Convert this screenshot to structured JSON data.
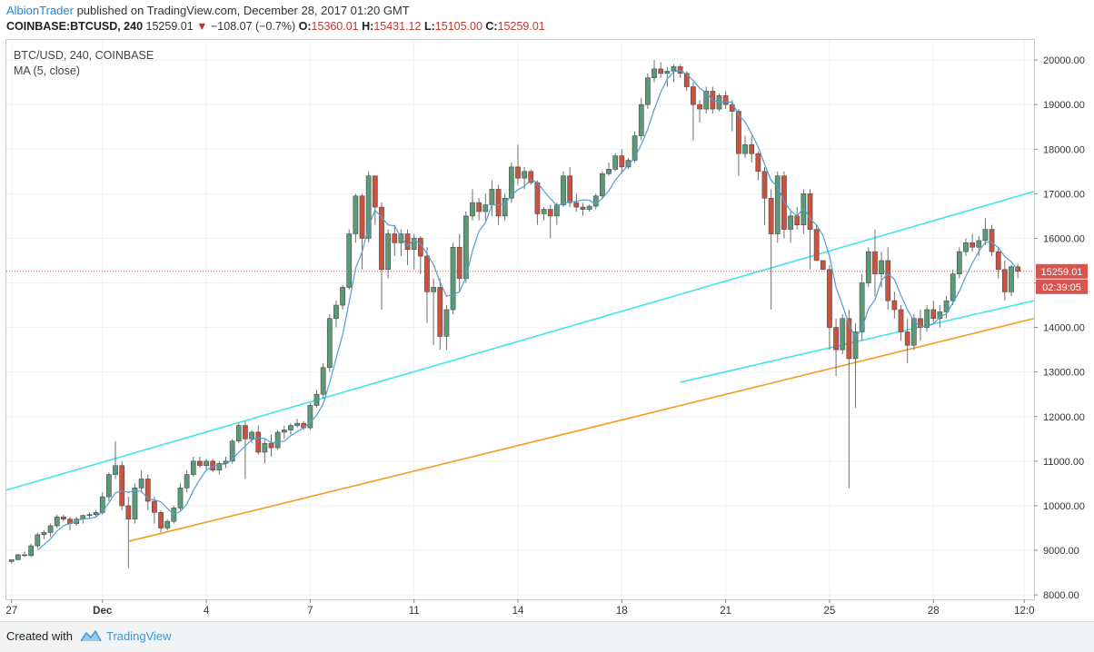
{
  "header": {
    "author": "AlbionTrader",
    "published": " published on TradingView.com, December 28, 2017 01:20 GMT",
    "symbol": "COINBASE:BTCUSD, 240",
    "price": "15259.01",
    "change_arrow": "▼",
    "change": "−108.07 (−0.7%)",
    "o_label": "O:",
    "o_value": "15360.01",
    "h_label": "H:",
    "h_value": "15431.12",
    "l_label": "L:",
    "l_value": "15105.00",
    "c_label": "C:",
    "c_value": "15259.01"
  },
  "legend": {
    "title": "BTC/USD, 240, COINBASE",
    "indicator": "MA (5, close)"
  },
  "footer": {
    "created_with": "Created with",
    "brand": "TradingView"
  },
  "colors": {
    "up": "#5b9a78",
    "down": "#c9533e",
    "ma": "#4f9fd4",
    "channel": "#40e5ec",
    "support": "#f39c1f",
    "last_price_bg": "#d9534f",
    "grid": "#eef0f2"
  },
  "chart_data": {
    "type": "candlestick",
    "symbol": "BTC/USD",
    "interval": "240",
    "exchange": "COINBASE",
    "x_ticks": [
      "27",
      "Dec",
      "4",
      "7",
      "11",
      "14",
      "18",
      "21",
      "25",
      "28",
      "12:0"
    ],
    "x_tick_positions": [
      0,
      14,
      30,
      46,
      62,
      78,
      94,
      110,
      126,
      142,
      156
    ],
    "y_ticks": [
      "8000.00",
      "9000.00",
      "10000.00",
      "11000.00",
      "12000.00",
      "13000.00",
      "14000.00",
      "15000.00",
      "16000.00",
      "17000.00",
      "18000.00",
      "19000.00",
      "20000.00"
    ],
    "ylim": [
      7900,
      20450
    ],
    "xlim": [
      -0.8,
      157.5
    ],
    "last_price": "15259.01",
    "countdown": "02:39:05",
    "last_value": 15259.01,
    "candles": [
      [
        8750,
        8800,
        8700,
        8790
      ],
      [
        8790,
        8920,
        8780,
        8900
      ],
      [
        8900,
        8970,
        8850,
        8880
      ],
      [
        8880,
        9150,
        8850,
        9100
      ],
      [
        9100,
        9400,
        9050,
        9350
      ],
      [
        9350,
        9450,
        9250,
        9400
      ],
      [
        9400,
        9600,
        9300,
        9550
      ],
      [
        9550,
        9800,
        9500,
        9750
      ],
      [
        9750,
        9800,
        9650,
        9700
      ],
      [
        9700,
        9750,
        9450,
        9600
      ],
      [
        9600,
        9750,
        9550,
        9700
      ],
      [
        9700,
        9800,
        9600,
        9780
      ],
      [
        9780,
        9850,
        9700,
        9800
      ],
      [
        9800,
        9900,
        9750,
        9850
      ],
      [
        9850,
        10300,
        9800,
        10200
      ],
      [
        10200,
        10750,
        10100,
        10700
      ],
      [
        10700,
        11450,
        10600,
        10900
      ],
      [
        10900,
        11000,
        9900,
        10000
      ],
      [
        10000,
        10200,
        8600,
        9700
      ],
      [
        9700,
        10500,
        9600,
        10400
      ],
      [
        10400,
        10800,
        10300,
        10600
      ],
      [
        10600,
        10700,
        9900,
        10100
      ],
      [
        10100,
        10200,
        9600,
        9850
      ],
      [
        9850,
        9900,
        9400,
        9500
      ],
      [
        9500,
        9700,
        9450,
        9650
      ],
      [
        9650,
        10000,
        9600,
        9950
      ],
      [
        9950,
        10500,
        9900,
        10400
      ],
      [
        10400,
        10800,
        10300,
        10700
      ],
      [
        10700,
        11100,
        10650,
        11000
      ],
      [
        11000,
        11100,
        10850,
        10900
      ],
      [
        10900,
        11050,
        10800,
        11000
      ],
      [
        11000,
        11050,
        10750,
        10800
      ],
      [
        10800,
        11000,
        10700,
        10950
      ],
      [
        10950,
        11100,
        10850,
        11000
      ],
      [
        11000,
        11500,
        10950,
        11450
      ],
      [
        11450,
        11850,
        11400,
        11800
      ],
      [
        11800,
        11900,
        10600,
        11500
      ],
      [
        11500,
        11700,
        11400,
        11650
      ],
      [
        11650,
        11800,
        11150,
        11200
      ],
      [
        11200,
        11500,
        10950,
        11400
      ],
      [
        11400,
        11600,
        11100,
        11300
      ],
      [
        11300,
        11700,
        11250,
        11650
      ],
      [
        11650,
        11800,
        11500,
        11700
      ],
      [
        11700,
        11850,
        11600,
        11800
      ],
      [
        11800,
        11950,
        11750,
        11850
      ],
      [
        11850,
        11900,
        11700,
        11750
      ],
      [
        11750,
        12300,
        11700,
        12250
      ],
      [
        12250,
        12600,
        12200,
        12500
      ],
      [
        12500,
        13200,
        12400,
        13100
      ],
      [
        13100,
        14300,
        13000,
        14200
      ],
      [
        14200,
        14600,
        14000,
        14500
      ],
      [
        14500,
        14950,
        14400,
        14900
      ],
      [
        14900,
        16200,
        14850,
        16100
      ],
      [
        16100,
        17000,
        15900,
        16950
      ],
      [
        16950,
        17000,
        15300,
        16000
      ],
      [
        16000,
        17500,
        15900,
        17400
      ],
      [
        17400,
        17400,
        16300,
        16700
      ],
      [
        16700,
        16800,
        14400,
        15300
      ],
      [
        15300,
        16200,
        15100,
        16100
      ],
      [
        16100,
        16300,
        15600,
        15900
      ],
      [
        15900,
        16200,
        15600,
        16100
      ],
      [
        16100,
        16200,
        15400,
        15750
      ],
      [
        15750,
        16100,
        15300,
        16000
      ],
      [
        16000,
        16050,
        15200,
        15600
      ],
      [
        15600,
        15800,
        14100,
        14800
      ],
      [
        14800,
        15100,
        13600,
        14900
      ],
      [
        14900,
        15100,
        13500,
        13800
      ],
      [
        13800,
        14500,
        13500,
        14400
      ],
      [
        14400,
        15900,
        14300,
        15800
      ],
      [
        15800,
        16100,
        14800,
        15100
      ],
      [
        15100,
        16600,
        15000,
        16500
      ],
      [
        16500,
        17100,
        16400,
        16800
      ],
      [
        16800,
        16900,
        16400,
        16600
      ],
      [
        16600,
        17000,
        16400,
        16750
      ],
      [
        16750,
        17300,
        16500,
        17100
      ],
      [
        17100,
        17200,
        16300,
        16500
      ],
      [
        16500,
        17000,
        16400,
        16900
      ],
      [
        16900,
        17700,
        16800,
        17600
      ],
      [
        17600,
        18100,
        17200,
        17350
      ],
      [
        17350,
        17600,
        17100,
        17500
      ],
      [
        17500,
        17550,
        17200,
        17250
      ],
      [
        17250,
        17300,
        16300,
        16550
      ],
      [
        16550,
        16700,
        16400,
        16650
      ],
      [
        16650,
        16750,
        16000,
        16500
      ],
      [
        16500,
        16800,
        16300,
        16750
      ],
      [
        16750,
        17500,
        16700,
        17400
      ],
      [
        17400,
        17600,
        16700,
        16800
      ],
      [
        16800,
        17000,
        16600,
        16700
      ],
      [
        16700,
        16800,
        16500,
        16650
      ],
      [
        16650,
        16750,
        16600,
        16720
      ],
      [
        16720,
        17000,
        16650,
        16950
      ],
      [
        16950,
        17500,
        16900,
        17450
      ],
      [
        17450,
        17700,
        17400,
        17550
      ],
      [
        17550,
        17900,
        17500,
        17850
      ],
      [
        17850,
        18000,
        17450,
        17600
      ],
      [
        17600,
        17800,
        17550,
        17750
      ],
      [
        17750,
        18400,
        17700,
        18300
      ],
      [
        18300,
        19150,
        18200,
        19000
      ],
      [
        19000,
        19700,
        18900,
        19600
      ],
      [
        19600,
        20000,
        19500,
        19800
      ],
      [
        19800,
        19950,
        19600,
        19700
      ],
      [
        19700,
        19850,
        19400,
        19750
      ],
      [
        19750,
        19900,
        19500,
        19850
      ],
      [
        19850,
        19900,
        19600,
        19700
      ],
      [
        19700,
        19750,
        19300,
        19400
      ],
      [
        19400,
        19500,
        18200,
        19000
      ],
      [
        19000,
        19100,
        18600,
        18900
      ],
      [
        18900,
        19400,
        18800,
        19300
      ],
      [
        19300,
        19400,
        18800,
        18900
      ],
      [
        18900,
        19250,
        18850,
        19200
      ],
      [
        19200,
        19300,
        18900,
        19000
      ],
      [
        19000,
        19100,
        18400,
        18850
      ],
      [
        18850,
        18900,
        17400,
        17900
      ],
      [
        17900,
        18300,
        17800,
        18100
      ],
      [
        18100,
        18300,
        17700,
        17900
      ],
      [
        17900,
        17950,
        17300,
        17500
      ],
      [
        17500,
        17600,
        16300,
        16900
      ],
      [
        16900,
        17100,
        14400,
        16100
      ],
      [
        16100,
        17500,
        15900,
        17400
      ],
      [
        17400,
        17500,
        16000,
        16200
      ],
      [
        16200,
        16600,
        15900,
        16500
      ],
      [
        16500,
        16700,
        16200,
        16300
      ],
      [
        16300,
        17100,
        16100,
        17000
      ],
      [
        17000,
        17100,
        15300,
        16200
      ],
      [
        16200,
        16300,
        15600,
        15500
      ],
      [
        15500,
        15500,
        15300,
        15300
      ],
      [
        15300,
        15400,
        13500,
        14000
      ],
      [
        14000,
        14200,
        12900,
        13500
      ],
      [
        13500,
        14300,
        13400,
        14200
      ],
      [
        14200,
        14400,
        10400,
        13300
      ],
      [
        13300,
        14100,
        12200,
        13900
      ],
      [
        13900,
        15200,
        13700,
        15000
      ],
      [
        15000,
        15800,
        14900,
        15700
      ],
      [
        15700,
        16200,
        14700,
        15200
      ],
      [
        15200,
        15700,
        14900,
        15500
      ],
      [
        15500,
        15800,
        14400,
        14600
      ],
      [
        14600,
        14800,
        14200,
        14400
      ],
      [
        14400,
        14500,
        13700,
        13900
      ],
      [
        13900,
        14200,
        13200,
        13600
      ],
      [
        13600,
        14300,
        13500,
        14200
      ],
      [
        14200,
        14400,
        13700,
        14000
      ],
      [
        14000,
        14500,
        13900,
        14400
      ],
      [
        14400,
        14600,
        14100,
        14200
      ],
      [
        14200,
        14500,
        14000,
        14350
      ],
      [
        14350,
        14700,
        14200,
        14600
      ],
      [
        14600,
        15300,
        14500,
        15200
      ],
      [
        15200,
        15800,
        15100,
        15700
      ],
      [
        15700,
        16000,
        15600,
        15900
      ],
      [
        15900,
        16100,
        15700,
        15800
      ],
      [
        15800,
        16050,
        15600,
        15950
      ],
      [
        15950,
        16450,
        15850,
        16200
      ],
      [
        16200,
        16300,
        15600,
        15700
      ],
      [
        15700,
        15800,
        15100,
        15300
      ],
      [
        15300,
        15500,
        14600,
        14800
      ],
      [
        14800,
        15400,
        14700,
        15360
      ],
      [
        15360,
        15431.12,
        15105,
        15259.01
      ]
    ],
    "channel_upper": {
      "x": [
        -0.8,
        157.5
      ],
      "y": [
        10350,
        17050
      ]
    },
    "channel_lower": {
      "x": [
        103,
        157.5
      ],
      "y": [
        12770,
        14600
      ]
    },
    "support_line": {
      "x": [
        18,
        157.5
      ],
      "y": [
        9200,
        14200
      ]
    }
  }
}
